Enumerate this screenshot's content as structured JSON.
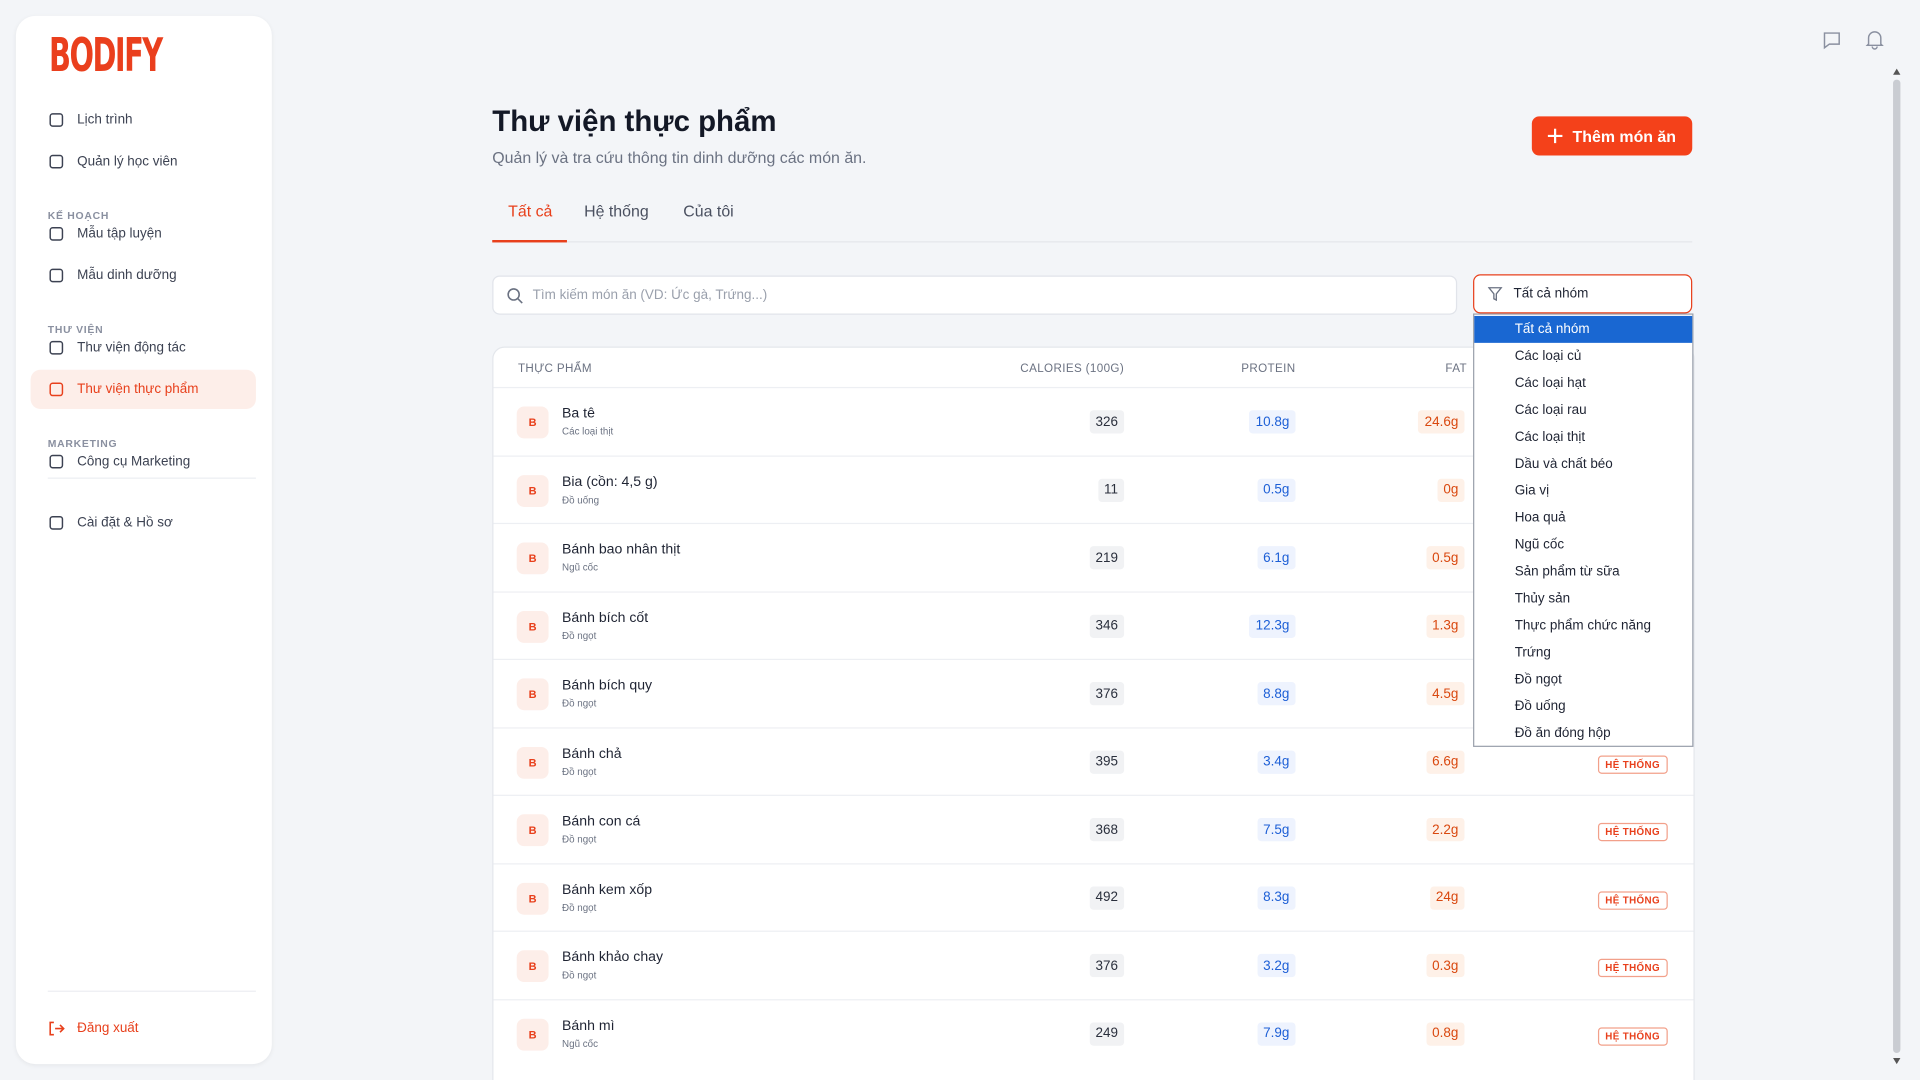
{
  "sidebar": {
    "logo": "BODIFY",
    "items": [
      {
        "label": "Lịch trình"
      },
      {
        "label": "Quản lý học viên"
      },
      {
        "section": "KẾ HOẠCH"
      },
      {
        "label": "Mẫu tập luyện"
      },
      {
        "label": "Mẫu dinh dưỡng"
      },
      {
        "section": "THƯ VIỆN"
      },
      {
        "label": "Thư viện động tác"
      },
      {
        "label": "Thư viện thực phẩm"
      },
      {
        "section": "MARKETING"
      },
      {
        "label": "Công cụ Marketing"
      },
      {
        "label": "Cài đặt & Hồ sơ"
      }
    ],
    "logout": "Đăng xuất"
  },
  "header": {
    "title": "Thư viện thực phẩm",
    "subtitle": "Quản lý và tra cứu thông tin dinh dưỡng các món ăn.",
    "button": "Thêm món ăn"
  },
  "tabs": [
    "Tất cả",
    "Hệ thống",
    "Của tôi"
  ],
  "search": {
    "placeholder": "Tìm kiếm món ăn (VD: Ức gà, Trứng...)"
  },
  "filter": {
    "selected": "Tất cả nhóm",
    "options": [
      "Tất cả nhóm",
      "Các loại củ",
      "Các loại hạt",
      "Các loại rau",
      "Các loại thịt",
      "Dầu và chất béo",
      "Gia vị",
      "Hoa quả",
      "Ngũ cốc",
      "Sản phẩm từ sữa",
      "Thủy sản",
      "Thực phẩm chức năng",
      "Trứng",
      "Đồ ngọt",
      "Đồ uống",
      "Đồ ăn đóng hộp"
    ]
  },
  "table": {
    "columns": [
      "THỰC PHẨM",
      "CALORIES (100G)",
      "PROTEIN",
      "FAT"
    ],
    "rows": [
      {
        "avatar": "B",
        "name": "Ba tê",
        "group": "Các loại thịt",
        "calories": "326",
        "protein": "10.8g",
        "fat": "24.6g"
      },
      {
        "avatar": "B",
        "name": "Bia (cồn: 4,5 g)",
        "group": "Đồ uống",
        "calories": "11",
        "protein": "0.5g",
        "fat": "0g"
      },
      {
        "avatar": "B",
        "name": "Bánh bao nhân thịt",
        "group": "Ngũ cốc",
        "calories": "219",
        "protein": "6.1g",
        "fat": "0.5g"
      },
      {
        "avatar": "B",
        "name": "Bánh bích cốt",
        "group": "Đồ ngọt",
        "calories": "346",
        "protein": "12.3g",
        "fat": "1.3g"
      },
      {
        "avatar": "B",
        "name": "Bánh bích quy",
        "group": "Đồ ngọt",
        "calories": "376",
        "protein": "8.8g",
        "fat": "4.5g"
      },
      {
        "avatar": "B",
        "name": "Bánh chả",
        "group": "Đồ ngọt",
        "calories": "395",
        "protein": "3.4g",
        "fat": "6.6g",
        "badge": "HỆ THỐNG"
      },
      {
        "avatar": "B",
        "name": "Bánh con cá",
        "group": "Đồ ngọt",
        "calories": "368",
        "protein": "7.5g",
        "fat": "2.2g",
        "badge": "HỆ THỐNG"
      },
      {
        "avatar": "B",
        "name": "Bánh kem xốp",
        "group": "Đồ ngọt",
        "calories": "492",
        "protein": "8.3g",
        "fat": "24g",
        "badge": "HỆ THỐNG"
      },
      {
        "avatar": "B",
        "name": "Bánh khảo chay",
        "group": "Đồ ngọt",
        "calories": "376",
        "protein": "3.2g",
        "fat": "0.3g",
        "badge": "HỆ THỐNG"
      },
      {
        "avatar": "B",
        "name": "Bánh mì",
        "group": "Ngũ cốc",
        "calories": "249",
        "protein": "7.9g",
        "fat": "0.8g",
        "badge": "HỆ THỐNG"
      }
    ]
  }
}
